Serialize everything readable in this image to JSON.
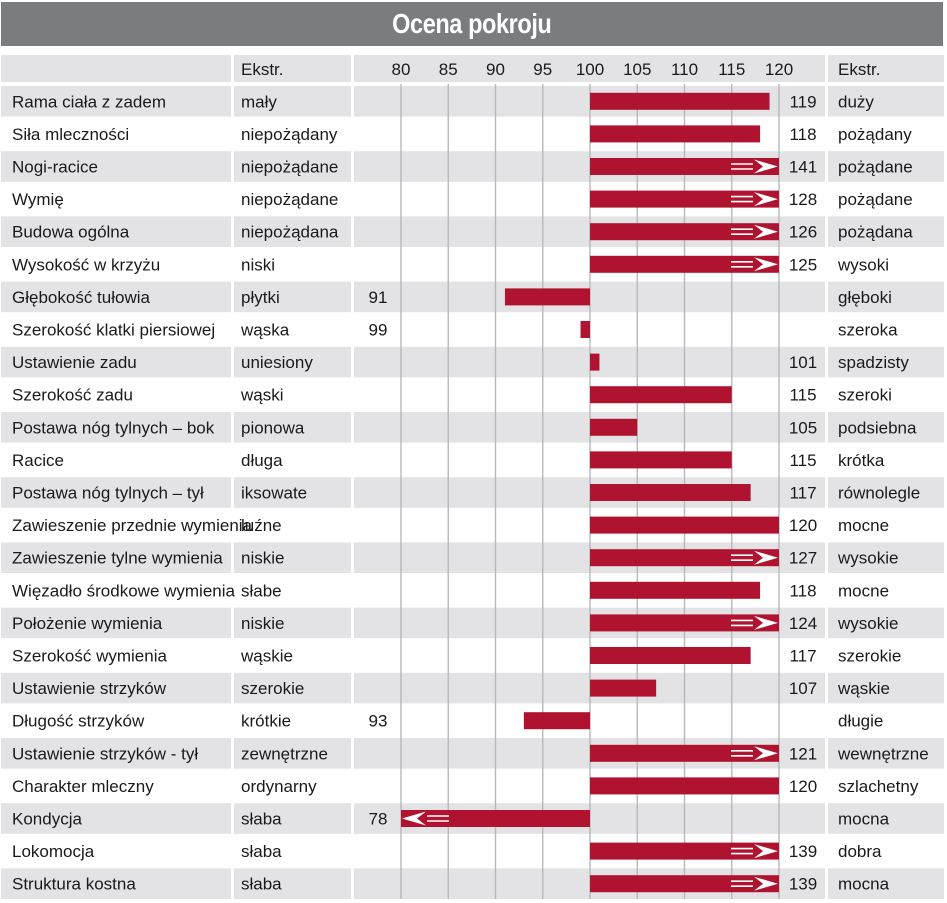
{
  "title": "Ocena pokroju",
  "colors": {
    "bar": "#b0132f",
    "band": "#e3e3e5",
    "header": "#7b7c80",
    "grid": "#b8b8bc",
    "arrow": "#ffffff"
  },
  "headers": {
    "extreme_left": "Ekstr.",
    "extreme_right": "Ekstr."
  },
  "chart_data": {
    "type": "bar",
    "orientation": "horizontal",
    "title": "Ocena pokroju",
    "baseline": 100,
    "xlim": [
      80,
      120
    ],
    "ticks": [
      "80",
      "85",
      "90",
      "95",
      "100",
      "105",
      "110",
      "115",
      "120"
    ],
    "tick_values": [
      80,
      85,
      90,
      95,
      100,
      105,
      110,
      115,
      120
    ],
    "grid": true,
    "clip_arrow_note": "values beyond axis range are shown as a clipped bar with an arrow",
    "rows": [
      {
        "trait": "Rama ciała z zadem",
        "low": "mały",
        "high": "duży",
        "value": 119
      },
      {
        "trait": "Siła mleczności",
        "low": "niepożądany",
        "high": "pożądany",
        "value": 118
      },
      {
        "trait": "Nogi-racice",
        "low": "niepożądane",
        "high": "pożądane",
        "value": 141
      },
      {
        "trait": "Wymię",
        "low": "niepożądane",
        "high": "pożądane",
        "value": 128
      },
      {
        "trait": "Budowa ogólna",
        "low": "niepożądana",
        "high": "pożądana",
        "value": 126
      },
      {
        "trait": "Wysokość w krzyżu",
        "low": "niski",
        "high": "wysoki",
        "value": 125
      },
      {
        "trait": "Głębokość tułowia",
        "low": "płytki",
        "high": "głęboki",
        "value": 91
      },
      {
        "trait": "Szerokość klatki piersiowej",
        "low": "wąska",
        "high": "szeroka",
        "value": 99
      },
      {
        "trait": "Ustawienie zadu",
        "low": "uniesiony",
        "high": "spadzisty",
        "value": 101
      },
      {
        "trait": "Szerokość zadu",
        "low": "wąski",
        "high": "szeroki",
        "value": 115
      },
      {
        "trait": "Postawa nóg tylnych – bok",
        "low": "pionowa",
        "high": "podsiebna",
        "value": 105
      },
      {
        "trait": "Racice",
        "low": "długa",
        "high": "krótka",
        "value": 115
      },
      {
        "trait": "Postawa nóg tylnych – tył",
        "low": "iksowate",
        "high": "równolegle",
        "value": 117
      },
      {
        "trait": "Zawieszenie przednie wymienia",
        "low": "luźne",
        "high": "mocne",
        "value": 120
      },
      {
        "trait": "Zawieszenie tylne wymienia",
        "low": "niskie",
        "high": "wysokie",
        "value": 127
      },
      {
        "trait": "Więzadło środkowe wymienia",
        "low": "słabe",
        "high": "mocne",
        "value": 118
      },
      {
        "trait": "Położenie wymienia",
        "low": "niskie",
        "high": "wysokie",
        "value": 124
      },
      {
        "trait": "Szerokość wymienia",
        "low": "wąskie",
        "high": "szerokie",
        "value": 117
      },
      {
        "trait": "Ustawienie strzyków",
        "low": "szerokie",
        "high": "wąskie",
        "value": 107
      },
      {
        "trait": "Długość strzyków",
        "low": "krótkie",
        "high": "długie",
        "value": 93
      },
      {
        "trait": "Ustawienie strzyków - tył",
        "low": "zewnętrzne",
        "high": "wewnętrzne",
        "value": 121
      },
      {
        "trait": "Charakter mleczny",
        "low": "ordynarny",
        "high": "szlachetny",
        "value": 120
      },
      {
        "trait": "Kondycja",
        "low": "słaba",
        "high": "mocna",
        "value": 78
      },
      {
        "trait": "Lokomocja",
        "low": "słaba",
        "high": "dobra",
        "value": 139
      },
      {
        "trait": "Struktura kostna",
        "low": "słaba",
        "high": "mocna",
        "value": 139
      }
    ]
  }
}
